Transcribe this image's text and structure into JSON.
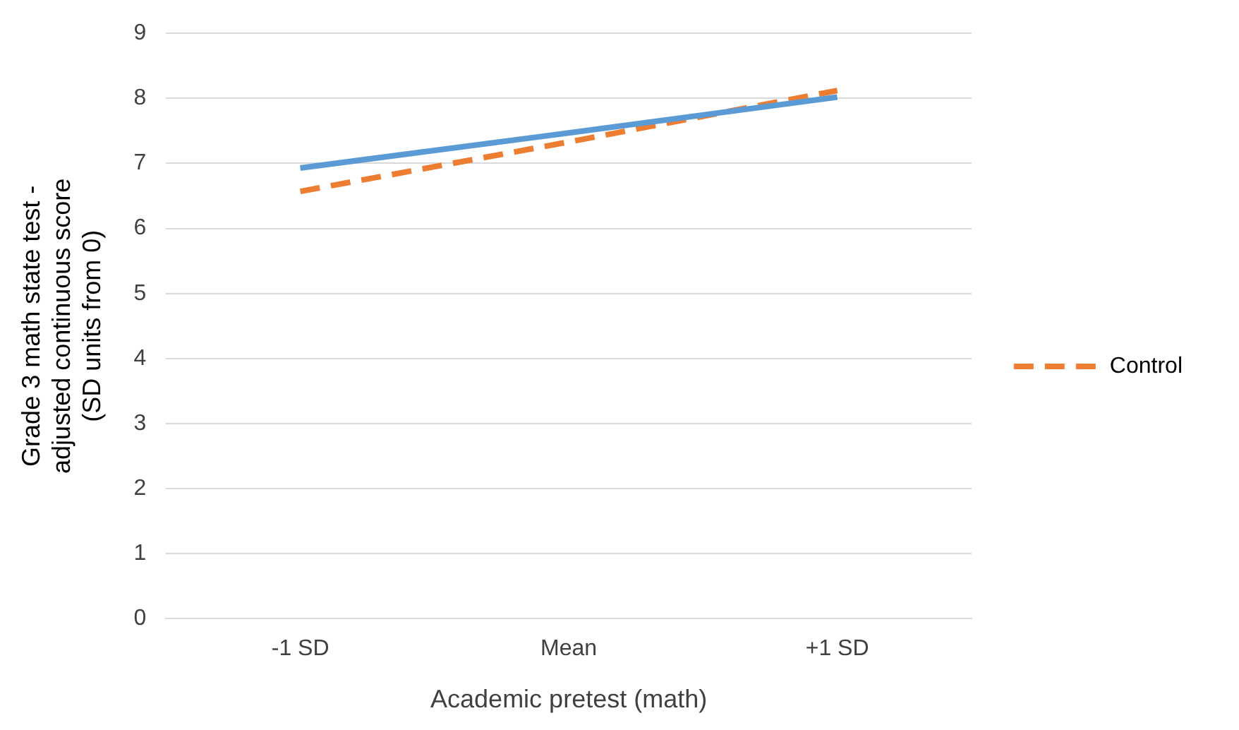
{
  "chart_data": {
    "type": "line",
    "xlabel": "Academic pretest (math)",
    "ylabel": "Grade 3 math state test - adjusted continuous score (SD units from 0)",
    "categories": [
      "-1 SD",
      "Mean",
      "+1 SD"
    ],
    "series": [
      {
        "color": "#5b9bd5",
        "values": [
          6.93,
          7.47,
          8.02
        ],
        "line_style": "solid"
      },
      {
        "name": "Control",
        "color": "#ed7d31",
        "values": [
          6.57,
          7.33,
          8.12
        ],
        "line_style": "dashed"
      }
    ],
    "ylim": [
      0,
      9
    ],
    "yticks": [
      0,
      1,
      2,
      3,
      4,
      5,
      6,
      7,
      8,
      9
    ],
    "grid": "y",
    "legend": "right",
    "marker": "none"
  }
}
